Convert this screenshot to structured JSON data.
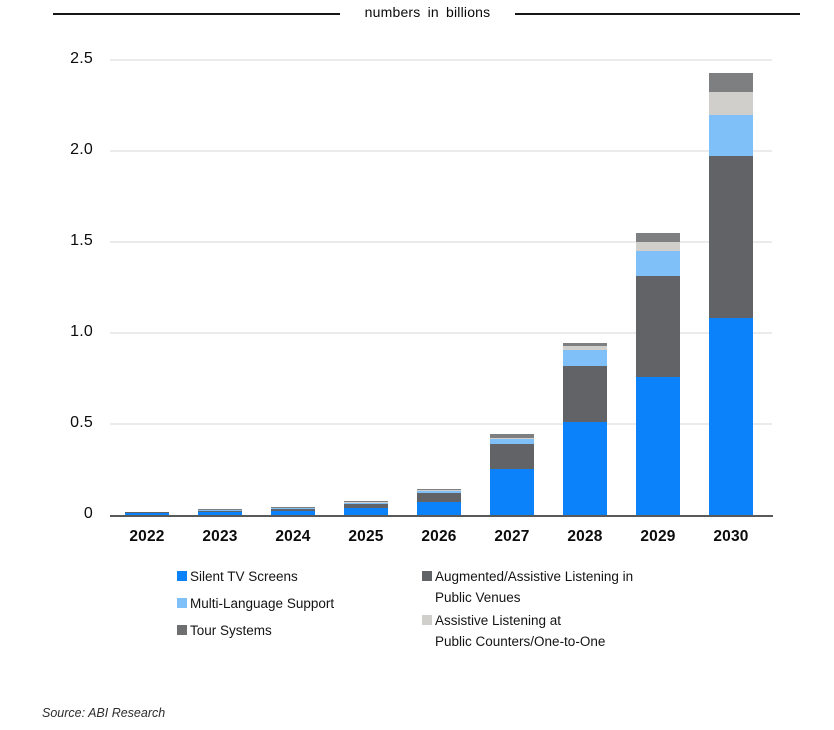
{
  "header": {
    "title": "numbers in billions"
  },
  "source_note": "Source: ABI Research",
  "colors": {
    "silent_tv": "#0b82fa",
    "multi_language": "#80c0f8",
    "tour_systems": "#7e7f81",
    "augmented_assistive": "#626366",
    "assistive_counters": "#d1cfcc",
    "gridline": "#ebebeb",
    "axis": "#58595b",
    "background": "#ffffff"
  },
  "chart_data": {
    "type": "bar",
    "stacked": true,
    "title": "numbers in billions",
    "unit": "billions",
    "categories": [
      "2022",
      "2023",
      "2024",
      "2025",
      "2026",
      "2027",
      "2028",
      "2029",
      "2030"
    ],
    "series": [
      {
        "name": "Silent TV Screens",
        "color": "#0b82fa",
        "values": [
          0.01,
          0.015,
          0.021,
          0.036,
          0.072,
          0.253,
          0.51,
          0.76,
          1.08
        ]
      },
      {
        "name": "Augmented/Assistive Listening in Public Venues",
        "color": "#626366",
        "values": [
          0.006,
          0.007,
          0.009,
          0.024,
          0.05,
          0.137,
          0.305,
          0.555,
          0.89
        ]
      },
      {
        "name": "Multi-Language Support",
        "color": "#80c0f8",
        "values": [
          0.0,
          0.002,
          0.002,
          0.007,
          0.012,
          0.027,
          0.088,
          0.135,
          0.225
        ]
      },
      {
        "name": "Assistive Listening at Public Counters/One-to-One",
        "color": "#d1cfcc",
        "values": [
          0.0,
          0.0,
          0.0,
          0.001,
          0.003,
          0.006,
          0.022,
          0.052,
          0.125
        ]
      },
      {
        "name": "Tour Systems",
        "color": "#7e7f81",
        "values": [
          0.0,
          0.002,
          0.002,
          0.004,
          0.008,
          0.02,
          0.016,
          0.05,
          0.105
        ]
      }
    ],
    "totals": [
      0.016,
      0.026,
      0.034,
      0.072,
      0.145,
      0.443,
      0.941,
      1.552,
      2.425
    ],
    "y_ticks": [
      0,
      0.5,
      1.0,
      1.5,
      2.0,
      2.5
    ],
    "y_tick_labels": [
      "0",
      "0.5",
      "1.0",
      "1.5",
      "2.0",
      "2.5"
    ],
    "ylim": [
      0,
      2.5
    ],
    "grid": true,
    "legend_position": "bottom"
  },
  "legend": {
    "columns": [
      {
        "items": [
          {
            "label_lines": [
              "Silent TV Screens"
            ],
            "color": "#0b82fa"
          },
          {
            "label_lines": [
              "Multi-Language Support"
            ],
            "color": "#80c0f8"
          },
          {
            "label_lines": [
              "Tour Systems"
            ],
            "color": "#6e6f71"
          }
        ]
      },
      {
        "items": [
          {
            "label_lines": [
              "Augmented/Assistive Listening in",
              "Public Venues"
            ],
            "color": "#626366"
          },
          {
            "label_lines": [
              "Assistive Listening at",
              "Public Counters/One-to-One"
            ],
            "color": "#d1cfcc"
          }
        ]
      }
    ]
  }
}
